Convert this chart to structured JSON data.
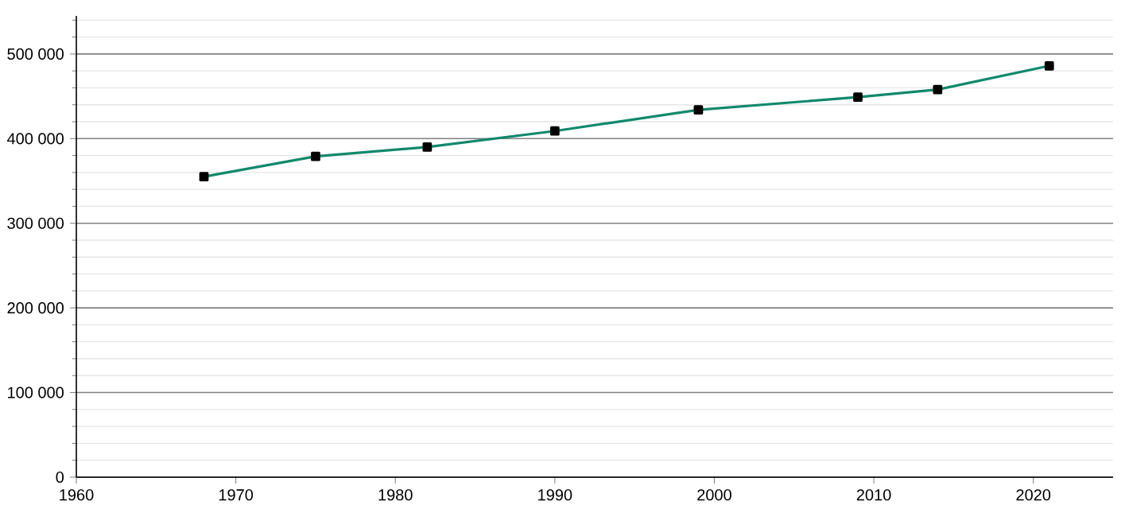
{
  "chart_data": {
    "type": "line",
    "x": [
      1968,
      1975,
      1982,
      1990,
      1999,
      2009,
      2014,
      2021
    ],
    "series": [
      {
        "color": "#10896b",
        "values": [
          355000,
          379000,
          390000,
          409000,
          434000,
          449000,
          458000,
          486000
        ]
      }
    ],
    "xlim": [
      1960,
      2025
    ],
    "xticks": [
      1960,
      1970,
      1980,
      1990,
      2000,
      2010,
      2020
    ],
    "ylim": [
      0,
      545000
    ],
    "yticks": [
      {
        "value": 0,
        "label": "0"
      },
      {
        "value": 20000,
        "label": null
      },
      {
        "value": 40000,
        "label": null
      },
      {
        "value": 60000,
        "label": null
      },
      {
        "value": 80000,
        "label": null
      },
      {
        "value": 100000,
        "label": "100 000"
      },
      {
        "value": 120000,
        "label": null
      },
      {
        "value": 140000,
        "label": null
      },
      {
        "value": 160000,
        "label": null
      },
      {
        "value": 180000,
        "label": null
      },
      {
        "value": 200000,
        "label": "200 000"
      },
      {
        "value": 220000,
        "label": null
      },
      {
        "value": 240000,
        "label": null
      },
      {
        "value": 260000,
        "label": null
      },
      {
        "value": 280000,
        "label": null
      },
      {
        "value": 300000,
        "label": "300 000"
      },
      {
        "value": 320000,
        "label": null
      },
      {
        "value": 340000,
        "label": null
      },
      {
        "value": 360000,
        "label": null
      },
      {
        "value": 380000,
        "label": null
      },
      {
        "value": 400000,
        "label": "400 000"
      },
      {
        "value": 420000,
        "label": null
      },
      {
        "value": 440000,
        "label": null
      },
      {
        "value": 460000,
        "label": null
      },
      {
        "value": 480000,
        "label": null
      },
      {
        "value": 500000,
        "label": "500 000"
      },
      {
        "value": 520000,
        "label": null
      },
      {
        "value": 540000,
        "label": null
      }
    ],
    "grid": "y",
    "marker": "square",
    "line_style": "solid"
  }
}
